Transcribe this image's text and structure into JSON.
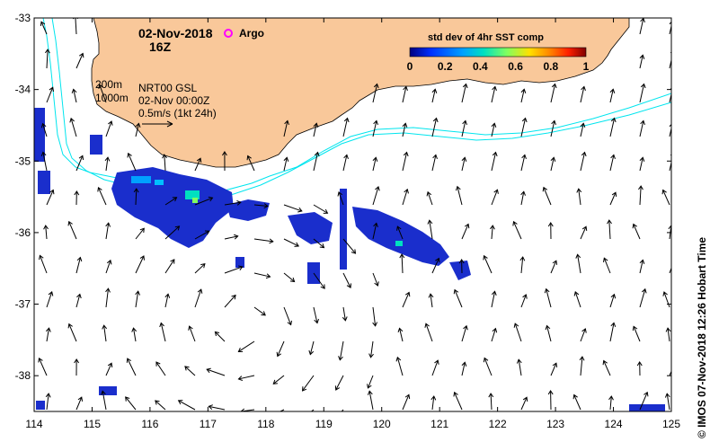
{
  "header": {
    "date": "02-Nov-2018",
    "hour": "16Z",
    "argo_label": "Argo",
    "colorbar_title": "std dev of 4hr SST comp"
  },
  "legend": {
    "depth_200": "200m",
    "depth_1000": "1000m",
    "current_source": "NRT00 GSL",
    "current_time": "02-Nov 00:00Z",
    "arrow_scale": "0.5m/s (1kt 24h)"
  },
  "side_text": "© IMOS 07-Nov-2018 12:26 Hobart Time",
  "colors": {
    "land": "#f9c89a",
    "isobath": "#00e5ee",
    "argo": "#ff00ff",
    "colorbar": [
      "#000080",
      "#0030ff",
      "#00a0ff",
      "#00e0c0",
      "#80ff60",
      "#ffe000",
      "#ff8000",
      "#ff2000",
      "#800000"
    ]
  },
  "chart_data": {
    "type": "map",
    "x_axis": {
      "range": [
        114,
        125
      ],
      "ticks": [
        "114",
        "115",
        "116",
        "117",
        "118",
        "119",
        "120",
        "121",
        "122",
        "123",
        "124",
        "125"
      ]
    },
    "y_axis": {
      "range": [
        -38.5,
        -33
      ],
      "ticks": [
        "-33",
        "-34",
        "-35",
        "-36",
        "-37",
        "-38"
      ]
    },
    "colorbar": {
      "range": [
        0,
        1
      ],
      "ticks": [
        "0",
        "0.2",
        "0.4",
        "0.6",
        "0.8",
        "1"
      ]
    }
  }
}
